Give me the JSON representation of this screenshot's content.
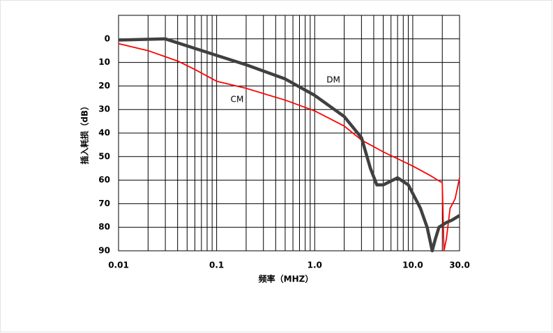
{
  "chart_data": {
    "type": "line",
    "xlabel": "频率（MHZ）",
    "ylabel": "插入耗损（dB）",
    "log_x": true,
    "y_inverted": true,
    "grid": true,
    "xlim": [
      0.01,
      30
    ],
    "xticks": [
      0.01,
      0.1,
      {
        "value": 1,
        "label": "1.0"
      },
      {
        "value": 10,
        "label": "10.0"
      },
      {
        "value": 30,
        "label": "30.0"
      }
    ],
    "xminor": [
      0.02,
      0.03,
      0.04,
      0.05,
      0.06,
      0.07,
      0.08,
      0.09,
      0.2,
      0.3,
      0.4,
      0.5,
      0.6,
      0.7,
      0.8,
      0.9,
      2,
      3,
      4,
      5,
      6,
      7,
      8,
      9,
      20
    ],
    "ylim": [
      -10,
      90
    ],
    "yticks": [
      0,
      10,
      20,
      30,
      40,
      50,
      60,
      70,
      80,
      90
    ],
    "series": [
      {
        "name": "CM",
        "color": "#ff0000",
        "x": [
          0.01,
          0.02,
          0.04,
          0.06,
          0.1,
          0.2,
          0.5,
          1,
          2,
          3,
          5,
          10,
          15,
          19,
          20,
          20.8,
          22,
          24,
          27,
          30
        ],
        "values": [
          2,
          5,
          9.4,
          13,
          18,
          21,
          26,
          30.6,
          37,
          43,
          48,
          54,
          58,
          60.6,
          61,
          90,
          85,
          72,
          68,
          59
        ]
      },
      {
        "name": "DM",
        "color": "#404040",
        "x": [
          0.01,
          0.03,
          0.05,
          0.1,
          0.2,
          0.5,
          1,
          2,
          3,
          3.7,
          4.3,
          5,
          7,
          9,
          12,
          14,
          15.8,
          17,
          18.5,
          22,
          25,
          30
        ],
        "values": [
          0.5,
          0,
          3,
          7,
          11,
          17,
          24,
          33,
          42,
          55,
          62,
          62,
          59,
          62,
          72,
          80,
          90,
          85,
          80,
          78,
          77,
          75
        ]
      }
    ]
  }
}
